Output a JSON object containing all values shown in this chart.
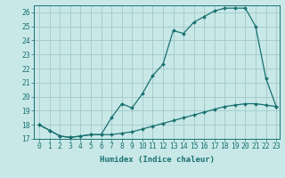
{
  "xlabel": "Humidex (Indice chaleur)",
  "bg_color": "#c8e8e8",
  "grid_color": "#a8cccc",
  "line_color": "#1a7070",
  "x_min": 0,
  "x_max": 23,
  "y_min": 17,
  "y_max": 26.5,
  "line1_x": [
    0,
    1,
    2,
    3,
    4,
    5,
    6,
    7,
    8,
    9,
    10,
    11,
    12,
    13,
    14,
    15,
    16,
    17,
    18,
    19,
    20,
    21,
    22,
    23
  ],
  "line1_y": [
    18.0,
    17.6,
    17.2,
    17.1,
    17.2,
    17.3,
    17.3,
    17.3,
    17.4,
    17.5,
    17.7,
    17.9,
    18.1,
    18.3,
    18.5,
    18.7,
    18.9,
    19.1,
    19.3,
    19.4,
    19.5,
    19.5,
    19.4,
    19.3
  ],
  "line2_x": [
    0,
    1,
    2,
    3,
    4,
    5,
    6,
    7,
    8,
    9,
    10,
    11,
    12,
    13,
    14,
    15,
    16,
    17,
    18,
    19,
    20,
    21,
    22,
    23
  ],
  "line2_y": [
    18.0,
    17.6,
    17.2,
    17.1,
    17.2,
    17.3,
    17.3,
    18.5,
    19.5,
    19.2,
    20.2,
    21.5,
    22.3,
    24.7,
    24.5,
    25.3,
    25.7,
    26.1,
    26.3,
    26.3,
    26.3,
    25.0,
    21.3,
    19.3
  ],
  "yticks": [
    17,
    18,
    19,
    20,
    21,
    22,
    23,
    24,
    25,
    26
  ],
  "xtick_labels": [
    "0",
    "1",
    "2",
    "3",
    "4",
    "5",
    "6",
    "7",
    "8",
    "9",
    "10",
    "11",
    "12",
    "13",
    "14",
    "15",
    "16",
    "17",
    "18",
    "19",
    "20",
    "21",
    "22",
    "23"
  ],
  "fontsize_label": 6.5,
  "fontsize_tick": 5.8,
  "markersize": 2.0
}
